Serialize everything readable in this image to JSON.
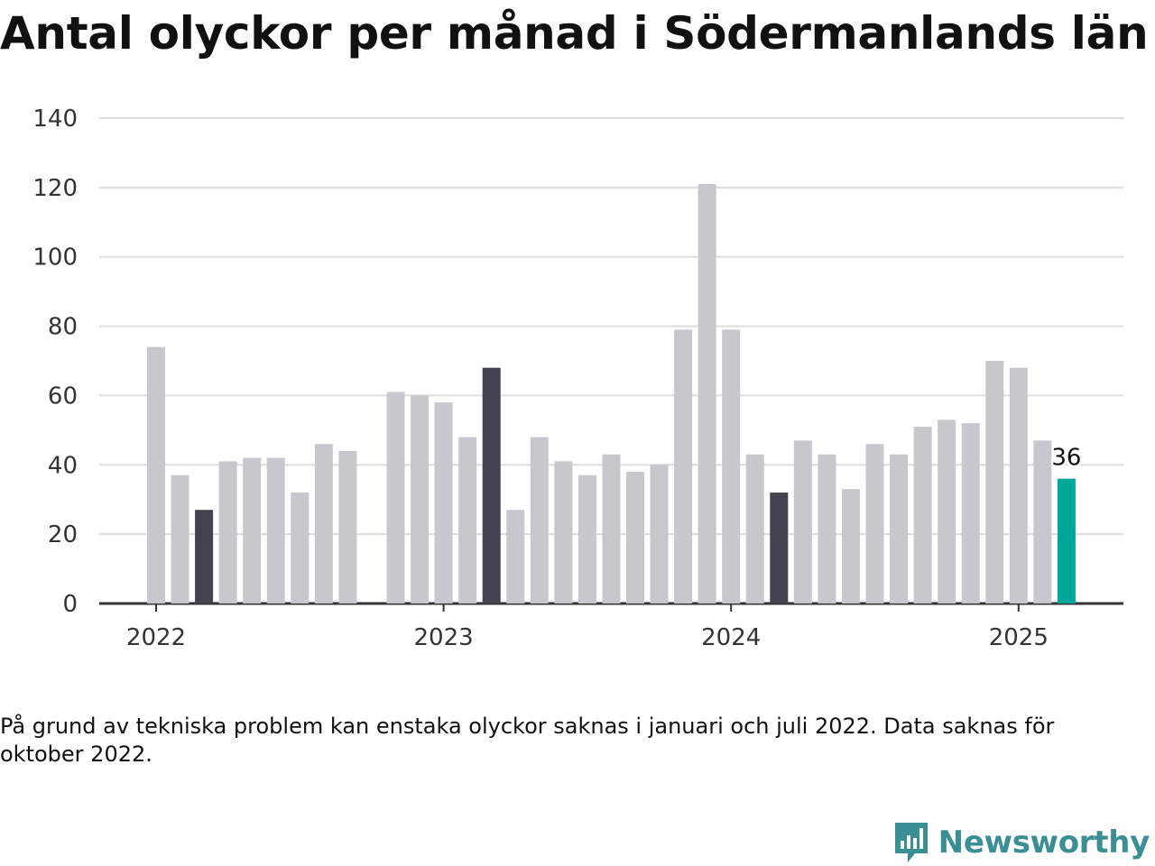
{
  "title": "Antal olyckor per månad i Södermanlands län",
  "note": "På grund av tekniska problem kan enstaka olyckor saknas i januari och juli 2022. Data saknas för oktober 2022.",
  "brand": {
    "name": "Newsworthy",
    "icon": "newsworthy-chart-icon",
    "color": "#3a8f94"
  },
  "colors": {
    "default": "#c8c7ce",
    "highlight": "#434250",
    "latest": "#00a69a",
    "grid": "#dddddd",
    "axis": "#333333"
  },
  "chart_data": {
    "type": "bar",
    "title": "Antal olyckor per månad i Södermanlands län",
    "xlabel": "",
    "ylabel": "",
    "ylim": [
      0,
      140
    ],
    "yticks": [
      0,
      20,
      40,
      60,
      80,
      100,
      120,
      140
    ],
    "xticks": [
      "2022",
      "2023",
      "2024",
      "2025"
    ],
    "grid": true,
    "x": [
      "2022-01",
      "2022-02",
      "2022-03",
      "2022-04",
      "2022-05",
      "2022-06",
      "2022-07",
      "2022-08",
      "2022-09",
      "2022-10",
      "2022-11",
      "2022-12",
      "2023-01",
      "2023-02",
      "2023-03",
      "2023-04",
      "2023-05",
      "2023-06",
      "2023-07",
      "2023-08",
      "2023-09",
      "2023-10",
      "2023-11",
      "2023-12",
      "2024-01",
      "2024-02",
      "2024-03",
      "2024-04",
      "2024-05",
      "2024-06",
      "2024-07",
      "2024-08",
      "2024-09",
      "2024-10",
      "2024-11",
      "2024-12",
      "2025-01",
      "2025-02",
      "2025-03"
    ],
    "values": [
      74,
      37,
      27,
      41,
      42,
      42,
      32,
      46,
      44,
      null,
      61,
      60,
      58,
      48,
      68,
      27,
      48,
      41,
      37,
      43,
      38,
      40,
      79,
      121,
      79,
      43,
      32,
      47,
      43,
      33,
      46,
      43,
      51,
      53,
      52,
      70,
      68,
      47,
      36
    ],
    "highlighted": [
      "2022-03",
      "2023-03",
      "2024-03"
    ],
    "latest": "2025-03",
    "data_labels": [
      {
        "x": "2025-03",
        "text": "36"
      }
    ]
  }
}
